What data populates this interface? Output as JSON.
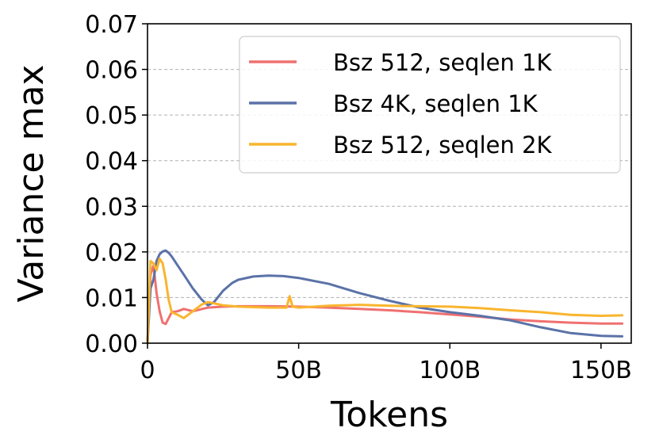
{
  "chart_data": {
    "type": "line",
    "xlabel": "Tokens",
    "ylabel": "Variance max",
    "xlim": [
      0,
      160
    ],
    "ylim": [
      0,
      0.07
    ],
    "x_ticks": [
      {
        "value": 0,
        "label": "0"
      },
      {
        "value": 50,
        "label": "50B"
      },
      {
        "value": 100,
        "label": "100B"
      },
      {
        "value": 150,
        "label": "150B"
      }
    ],
    "y_ticks": [
      {
        "value": 0.0,
        "label": "0.00"
      },
      {
        "value": 0.01,
        "label": "0.01"
      },
      {
        "value": 0.02,
        "label": "0.02"
      },
      {
        "value": 0.03,
        "label": "0.03"
      },
      {
        "value": 0.04,
        "label": "0.04"
      },
      {
        "value": 0.05,
        "label": "0.05"
      },
      {
        "value": 0.06,
        "label": "0.06"
      },
      {
        "value": 0.07,
        "label": "0.07"
      }
    ],
    "grid": "horizontal dashed",
    "legend_position": "top-right",
    "series": [
      {
        "name": "Bsz 512, seqlen 1K",
        "color": "#f07070",
        "x": [
          0,
          1,
          2,
          3,
          4,
          5,
          6,
          7,
          8,
          10,
          12,
          15,
          20,
          25,
          30,
          40,
          50,
          60,
          70,
          80,
          90,
          100,
          110,
          120,
          130,
          140,
          150,
          157
        ],
        "y": [
          0.0,
          0.015,
          0.017,
          0.011,
          0.007,
          0.0045,
          0.0042,
          0.0055,
          0.0068,
          0.007,
          0.0075,
          0.007,
          0.0078,
          0.008,
          0.0081,
          0.0081,
          0.008,
          0.0078,
          0.0075,
          0.0072,
          0.0068,
          0.0063,
          0.0058,
          0.0052,
          0.0048,
          0.0045,
          0.0043,
          0.0043
        ]
      },
      {
        "name": "Bsz 4K, seqlen 1K",
        "color": "#5b72a8",
        "x": [
          0,
          1,
          2,
          3,
          4,
          5,
          6,
          7,
          8,
          10,
          12,
          15,
          18,
          20,
          22,
          25,
          28,
          30,
          35,
          40,
          45,
          50,
          60,
          70,
          80,
          90,
          100,
          110,
          120,
          130,
          140,
          150,
          157
        ],
        "y": [
          0.0,
          0.012,
          0.014,
          0.018,
          0.0195,
          0.0201,
          0.0203,
          0.0198,
          0.019,
          0.017,
          0.015,
          0.012,
          0.0095,
          0.0083,
          0.009,
          0.0115,
          0.0132,
          0.0139,
          0.0146,
          0.0148,
          0.0147,
          0.0143,
          0.013,
          0.011,
          0.0093,
          0.0078,
          0.0068,
          0.006,
          0.005,
          0.0035,
          0.0022,
          0.0016,
          0.0015
        ]
      },
      {
        "name": "Bsz 512, seqlen 2K",
        "color": "#f9b52e",
        "x": [
          0,
          1,
          2,
          3,
          4,
          5,
          6,
          7,
          8,
          10,
          12,
          15,
          18,
          20,
          25,
          30,
          40,
          46,
          47,
          48,
          50,
          60,
          70,
          80,
          90,
          100,
          110,
          120,
          130,
          140,
          150,
          157
        ],
        "y": [
          0.0,
          0.018,
          0.0175,
          0.016,
          0.0185,
          0.0175,
          0.014,
          0.0095,
          0.0068,
          0.0062,
          0.0055,
          0.007,
          0.0085,
          0.009,
          0.0083,
          0.008,
          0.0078,
          0.0078,
          0.0103,
          0.008,
          0.0078,
          0.0082,
          0.0084,
          0.0082,
          0.0081,
          0.008,
          0.0077,
          0.0072,
          0.0068,
          0.0062,
          0.006,
          0.0061
        ]
      }
    ]
  }
}
